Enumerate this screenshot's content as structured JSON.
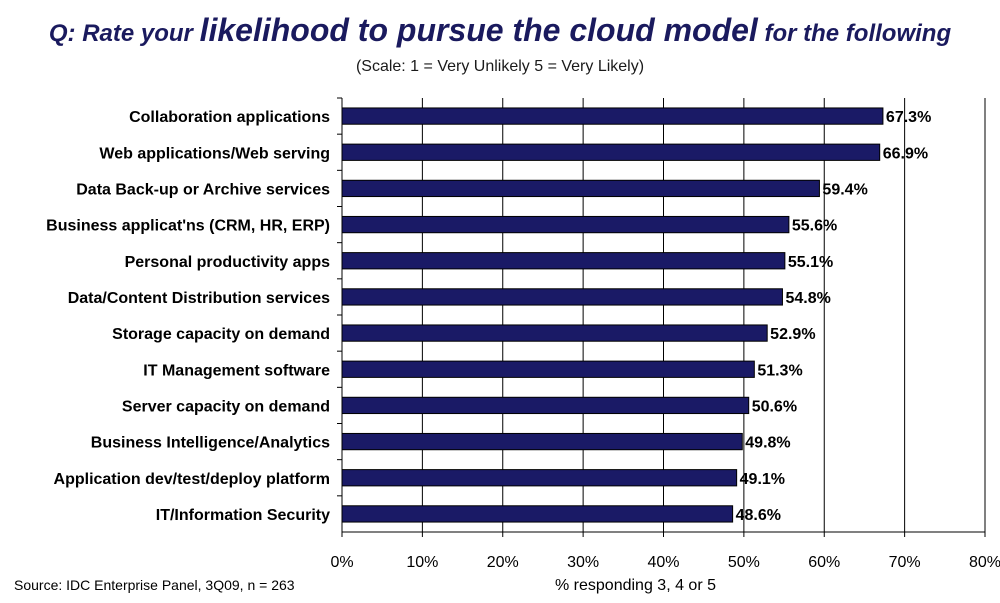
{
  "title": {
    "part1": "Q: Rate your ",
    "part2": "likelihood to pursue the cloud model",
    "part3": " for the following"
  },
  "subtitle": "(Scale: 1 = Very Unlikely  5 = Very Likely)",
  "source": "Source: IDC Enterprise Panel, 3Q09, n = 263",
  "colors": {
    "bar": "#1a1a66",
    "bar_edge": "#000000",
    "grid": "#000000"
  },
  "chart_data": {
    "type": "bar",
    "orientation": "horizontal",
    "categories": [
      "Collaboration applications",
      "Web applications/Web serving",
      "Data Back-up or Archive services",
      "Business applicat'ns (CRM, HR, ERP)",
      "Personal productivity apps",
      "Data/Content Distribution services",
      "Storage capacity on demand",
      "IT Management software",
      "Server capacity on demand",
      "Business Intelligence/Analytics",
      "Application dev/test/deploy platform",
      "IT/Information Security"
    ],
    "values": [
      67.3,
      66.9,
      59.4,
      55.6,
      55.1,
      54.8,
      52.9,
      51.3,
      50.6,
      49.8,
      49.1,
      48.6
    ],
    "value_labels": [
      "67.3%",
      "66.9%",
      "59.4%",
      "55.6%",
      "55.1%",
      "54.8%",
      "52.9%",
      "51.3%",
      "50.6%",
      "49.8%",
      "49.1%",
      "48.6%"
    ],
    "xticks": [
      "0%",
      "10%",
      "20%",
      "30%",
      "40%",
      "50%",
      "60%",
      "70%",
      "80%"
    ],
    "xlim": [
      0,
      80
    ],
    "xlabel": "% responding 3, 4 or 5",
    "grid": "vertical"
  }
}
